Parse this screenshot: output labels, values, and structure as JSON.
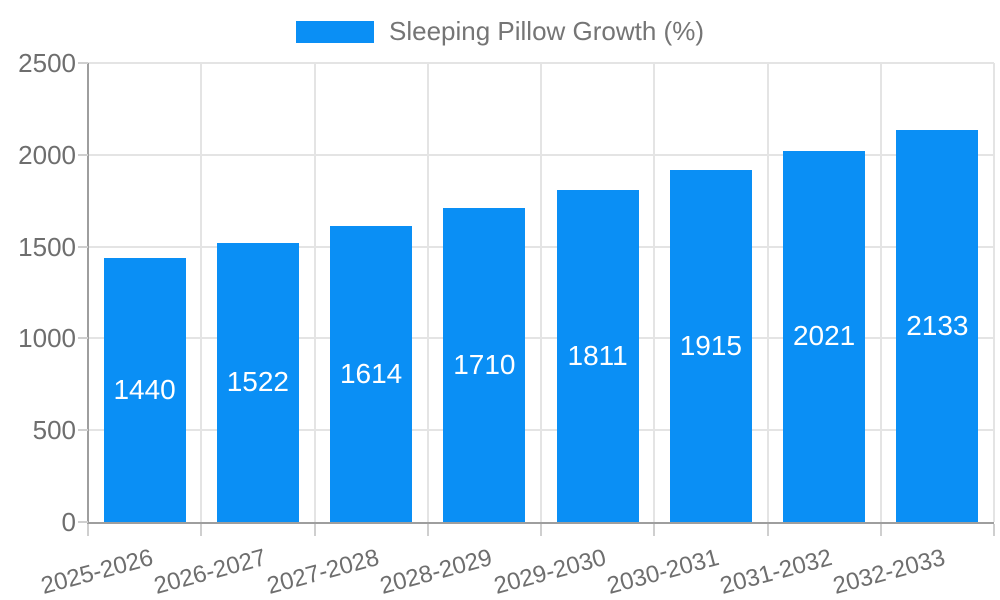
{
  "chart_data": {
    "type": "bar",
    "title": "",
    "legend_label": "Sleeping Pillow Growth (%)",
    "legend_position": "top",
    "categories": [
      "2025-2026",
      "2026-2027",
      "2027-2028",
      "2028-2029",
      "2029-2030",
      "2030-2031",
      "2031-2032",
      "2032-2033"
    ],
    "values": [
      1440,
      1522,
      1614,
      1710,
      1811,
      1915,
      2021,
      2133
    ],
    "xlabel": "",
    "ylabel": "",
    "ylim": [
      0,
      2500
    ],
    "yticks": [
      0,
      500,
      1000,
      1500,
      2000,
      2500
    ],
    "grid": true,
    "value_label_position": "inside-center"
  },
  "colors": {
    "bar": "#0a8ff5",
    "grid": "#e4e4e4",
    "axis": "#9e9e9e",
    "tick_mark": "#cfcfcf",
    "tick_text": "#6e6e6e",
    "legend_text": "#757575",
    "value_text": "#ffffff",
    "background": "#ffffff"
  }
}
